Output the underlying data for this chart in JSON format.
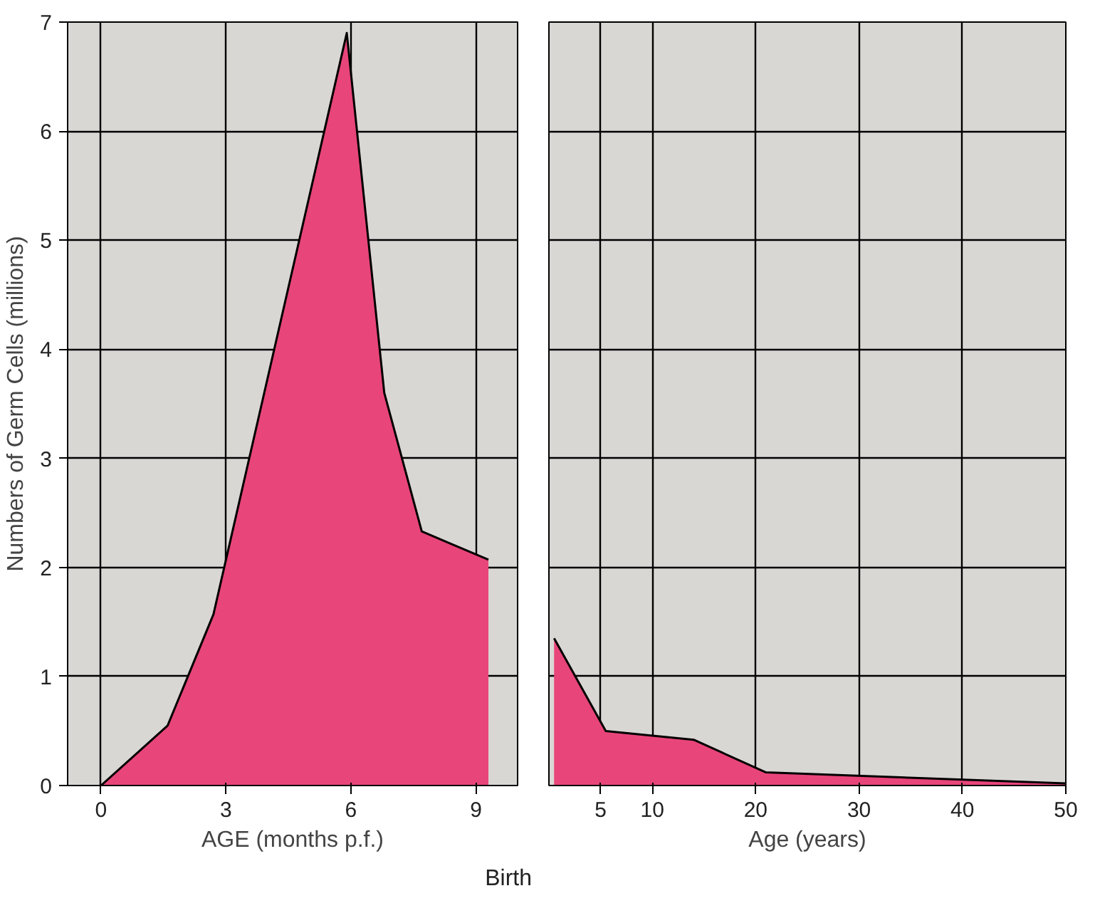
{
  "chart_data": [
    {
      "type": "area",
      "ylabel": "Numbers of Germ Cells (millions)",
      "xlabel": "AGE (months p.f.)",
      "x": [
        0,
        1.6,
        2.7,
        5.9,
        6.8,
        7.7,
        9.3
      ],
      "series": [
        {
          "color": "#e8457a",
          "values": [
            0,
            0.55,
            1.57,
            6.9,
            3.6,
            2.33,
            2.07
          ]
        }
      ],
      "xlim": [
        -0.8,
        10
      ],
      "xticks": [
        0,
        3,
        6,
        9
      ],
      "ylim": [
        0,
        7
      ],
      "yticks": [
        0,
        1,
        2,
        3,
        4,
        5,
        6,
        7
      ],
      "grid": true,
      "annotations": [
        "Birth"
      ]
    },
    {
      "type": "area",
      "xlabel": "Age (years)",
      "x": [
        0.5,
        5.5,
        14,
        21,
        50
      ],
      "series": [
        {
          "color": "#e8457a",
          "values": [
            1.35,
            0.5,
            0.42,
            0.12,
            0.02
          ]
        }
      ],
      "xlim": [
        0,
        50
      ],
      "xticks": [
        5,
        10,
        20,
        30,
        40,
        50
      ],
      "ylim": [
        0,
        7
      ],
      "yticks": [
        0,
        1,
        2,
        3,
        4,
        5,
        6,
        7
      ],
      "grid": true,
      "tick_labels": "x"
    }
  ]
}
